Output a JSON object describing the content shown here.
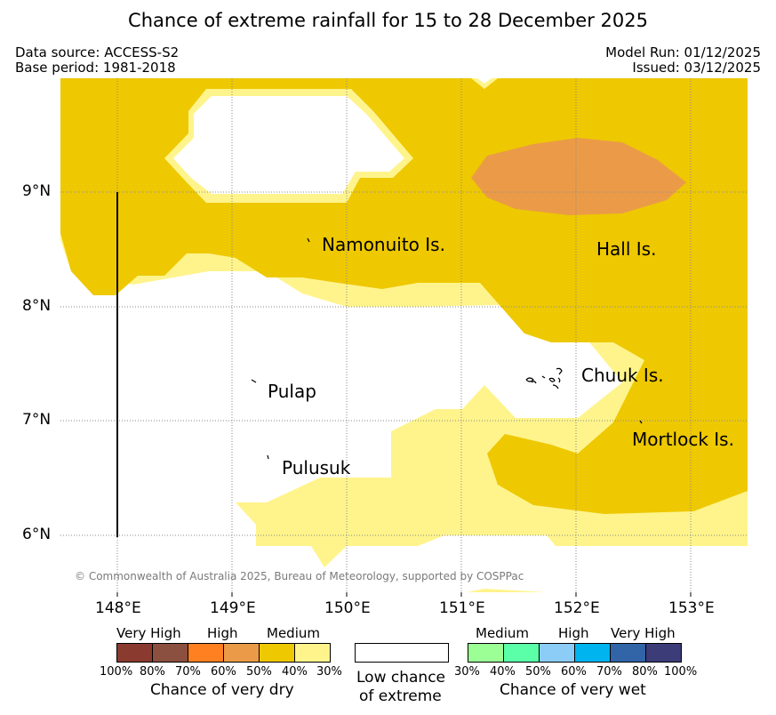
{
  "title": "Chance of extreme rainfall for 15 to 28 December 2025",
  "meta": {
    "data_source": "Data source: ACCESS-S2",
    "base_period": "Base period: 1981-2018",
    "model_run": "Model Run: 01/12/2025",
    "issued": "Issued: 03/12/2025"
  },
  "map": {
    "x_ticks": [
      "148°E",
      "149°E",
      "150°E",
      "151°E",
      "152°E",
      "153°E"
    ],
    "y_ticks": [
      "9°N",
      "8°N",
      "7°N",
      "6°N"
    ],
    "places": {
      "namonuito": "Namonuito Is.",
      "hall": "Hall Is.",
      "pulap": "Pulap",
      "chuuk": "Chuuk Is.",
      "pulusuk": "Pulusuk",
      "mortlock": "Mortlock Is."
    },
    "copyright": "© Commonwealth of Australia 2025, Bureau of Meteorology, supported by COSPPac"
  },
  "legend": {
    "dry": {
      "captions": [
        "Very High",
        "High",
        "Medium"
      ],
      "pcts": [
        "100%",
        "80%",
        "70%",
        "60%",
        "50%",
        "40%",
        "30%"
      ],
      "title": "Chance of very dry",
      "colors": [
        "#8b3a2f",
        "#8b5040",
        "#ff8020",
        "#eb9b48",
        "#eec800",
        "#fff48c"
      ]
    },
    "low": {
      "title_line1": "Low chance",
      "title_line2": "of extreme"
    },
    "wet": {
      "captions": [
        "Medium",
        "High",
        "Very High"
      ],
      "pcts": [
        "30%",
        "40%",
        "50%",
        "60%",
        "70%",
        "80%",
        "100%"
      ],
      "title": "Chance of very wet",
      "colors": [
        "#9cff96",
        "#5affa8",
        "#8ccdf8",
        "#00b4f0",
        "#3264a8",
        "#3c3c78"
      ]
    }
  }
}
